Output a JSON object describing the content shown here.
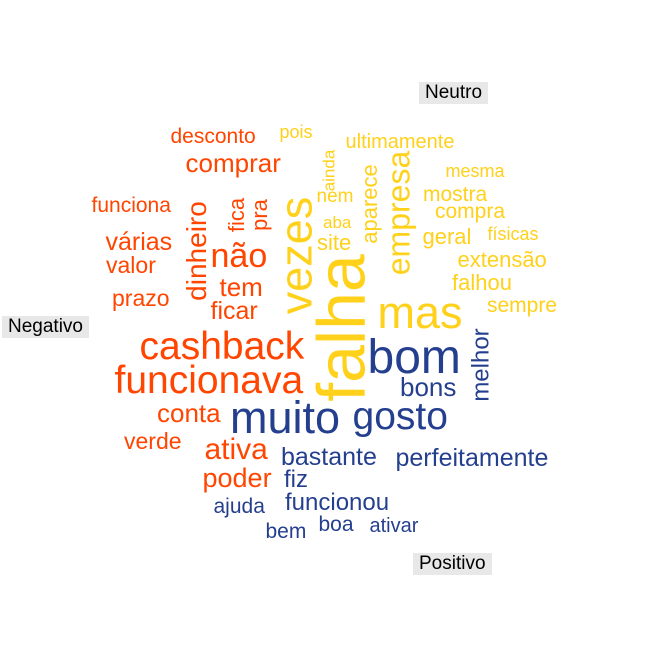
{
  "categories": {
    "neutro": "Neutro",
    "negativo": "Negativo",
    "positivo": "Positivo"
  },
  "colors": {
    "negativo": "#ff4500",
    "neutro": "#ffd11a",
    "positivo": "#253f8f"
  },
  "words": {
    "negativo": [
      "desconto",
      "comprar",
      "funciona",
      "dinheiro",
      "fica",
      "pra",
      "não",
      "várias",
      "valor",
      "tem",
      "prazo",
      "ficar",
      "cashback",
      "funcionava",
      "conta",
      "verde",
      "ativa",
      "poder"
    ],
    "neutro": [
      "pois",
      "ultimamente",
      "ainda",
      "mesma",
      "nem",
      "aparece",
      "empresa",
      "mostra",
      "compra",
      "aba",
      "vezes",
      "site",
      "geral",
      "físicas",
      "extensão",
      "falhou",
      "falha",
      "mas",
      "sempre"
    ],
    "positivo": [
      "bom",
      "melhor",
      "bons",
      "muito",
      "gosto",
      "bastante",
      "perfeitamente",
      "fiz",
      "funcionou",
      "ajuda",
      "boa",
      "ativar",
      "bem"
    ]
  }
}
